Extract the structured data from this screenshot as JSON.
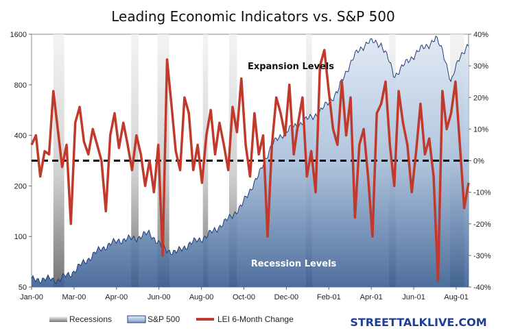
{
  "chart_data": {
    "type": "area",
    "title": "Leading Economic Indicators vs. S&P 500",
    "x_tick_labels": [
      "Jan-00",
      "Mar-00",
      "Apr-00",
      "Jun-00",
      "Aug-00",
      "Oct-00",
      "Dec-00",
      "Feb-01",
      "Apr-01",
      "Jun-01",
      "Aug-01"
    ],
    "y_left": {
      "ticks": [
        50,
        100,
        200,
        400,
        800,
        1600
      ],
      "tick_labels": [
        "50",
        "100",
        "200",
        "400",
        "800",
        "1600"
      ],
      "scale": "log",
      "range": [
        50,
        1600
      ]
    },
    "y_right": {
      "ticks": [
        40,
        30,
        20,
        10,
        0,
        -10,
        -20,
        -30,
        -40
      ],
      "tick_labels": [
        "40%",
        "30%",
        "20%",
        "10%",
        "0%",
        "-10%",
        "-20%",
        "-30%",
        "-40%"
      ],
      "range": [
        -40,
        40
      ],
      "unit": "%"
    },
    "annotations": {
      "expansion": "Expansion Levels",
      "recession": "Recession Levels"
    },
    "zero_line": 0,
    "grid": false,
    "legend_position": "bottom",
    "legend": [
      {
        "label": "Recessions",
        "kind": "recession"
      },
      {
        "label": "S&P 500",
        "kind": "area"
      },
      {
        "label": "LEI 6-Month Change",
        "kind": "line"
      }
    ],
    "colors": {
      "area_fill": "#a9c0db",
      "area_line": "#1f3c78",
      "lei_line": "#c0392b",
      "recession_band": "#c8c8c8",
      "zero_line": "#000000"
    },
    "recession_periods": [
      [
        0.05,
        0.075
      ],
      [
        0.228,
        0.245
      ],
      [
        0.288,
        0.315
      ],
      [
        0.392,
        0.404
      ],
      [
        0.452,
        0.47
      ],
      [
        0.628,
        0.642
      ],
      [
        0.818,
        0.833
      ],
      [
        0.958,
        0.99
      ]
    ],
    "series": [
      {
        "name": "S&P 500",
        "axis": "left",
        "x": [
          0,
          0.03,
          0.06,
          0.09,
          0.12,
          0.16,
          0.2,
          0.24,
          0.27,
          0.3,
          0.33,
          0.36,
          0.4,
          0.44,
          0.48,
          0.52,
          0.55,
          0.58,
          0.62,
          0.66,
          0.7,
          0.74,
          0.77,
          0.8,
          0.83,
          0.86,
          0.89,
          0.91,
          0.925,
          0.94,
          0.96,
          0.98,
          1.0
        ],
        "values": [
          55,
          56,
          55,
          60,
          70,
          85,
          95,
          98,
          105,
          85,
          80,
          90,
          100,
          120,
          150,
          230,
          350,
          420,
          480,
          550,
          720,
          1200,
          1450,
          1400,
          900,
          1100,
          1300,
          1400,
          1500,
          1300,
          800,
          1200,
          1350
        ]
      },
      {
        "name": "LEI 6-Month Change",
        "axis": "right",
        "x": [
          0,
          0.01,
          0.02,
          0.03,
          0.04,
          0.05,
          0.06,
          0.07,
          0.08,
          0.09,
          0.1,
          0.11,
          0.12,
          0.13,
          0.14,
          0.15,
          0.16,
          0.17,
          0.18,
          0.19,
          0.2,
          0.21,
          0.22,
          0.23,
          0.24,
          0.25,
          0.26,
          0.27,
          0.28,
          0.29,
          0.3,
          0.31,
          0.32,
          0.33,
          0.34,
          0.35,
          0.36,
          0.37,
          0.38,
          0.39,
          0.4,
          0.41,
          0.42,
          0.43,
          0.44,
          0.45,
          0.46,
          0.47,
          0.48,
          0.49,
          0.5,
          0.51,
          0.52,
          0.53,
          0.54,
          0.55,
          0.56,
          0.57,
          0.58,
          0.59,
          0.6,
          0.61,
          0.62,
          0.63,
          0.64,
          0.65,
          0.66,
          0.67,
          0.68,
          0.69,
          0.7,
          0.71,
          0.72,
          0.73,
          0.74,
          0.75,
          0.76,
          0.77,
          0.78,
          0.79,
          0.8,
          0.81,
          0.82,
          0.83,
          0.84,
          0.85,
          0.86,
          0.87,
          0.88,
          0.89,
          0.9,
          0.91,
          0.92,
          0.93,
          0.94,
          0.95,
          0.96,
          0.97,
          0.98,
          0.99,
          1.0
        ],
        "values": [
          5,
          8,
          -5,
          3,
          2,
          22,
          10,
          -2,
          5,
          -20,
          12,
          17,
          6,
          2,
          10,
          5,
          0,
          -16,
          8,
          15,
          4,
          12,
          5,
          -3,
          8,
          2,
          -8,
          0,
          -10,
          5,
          -30,
          32,
          18,
          3,
          -3,
          20,
          15,
          -3,
          5,
          -7,
          8,
          16,
          2,
          12,
          5,
          -3,
          17,
          9,
          26,
          5,
          -5,
          15,
          2,
          8,
          -24,
          5,
          20,
          15,
          8,
          24,
          2,
          12,
          20,
          -5,
          3,
          -10,
          30,
          35,
          22,
          10,
          5,
          25,
          8,
          20,
          -18,
          5,
          10,
          -5,
          -24,
          15,
          18,
          25,
          5,
          -8,
          22,
          12,
          5,
          -10,
          3,
          18,
          2,
          7,
          -5,
          -38,
          22,
          10,
          15,
          25,
          5,
          -15,
          -7
        ]
      }
    ]
  },
  "footer": {
    "brand": "STREETTALKLIVE.COM"
  }
}
